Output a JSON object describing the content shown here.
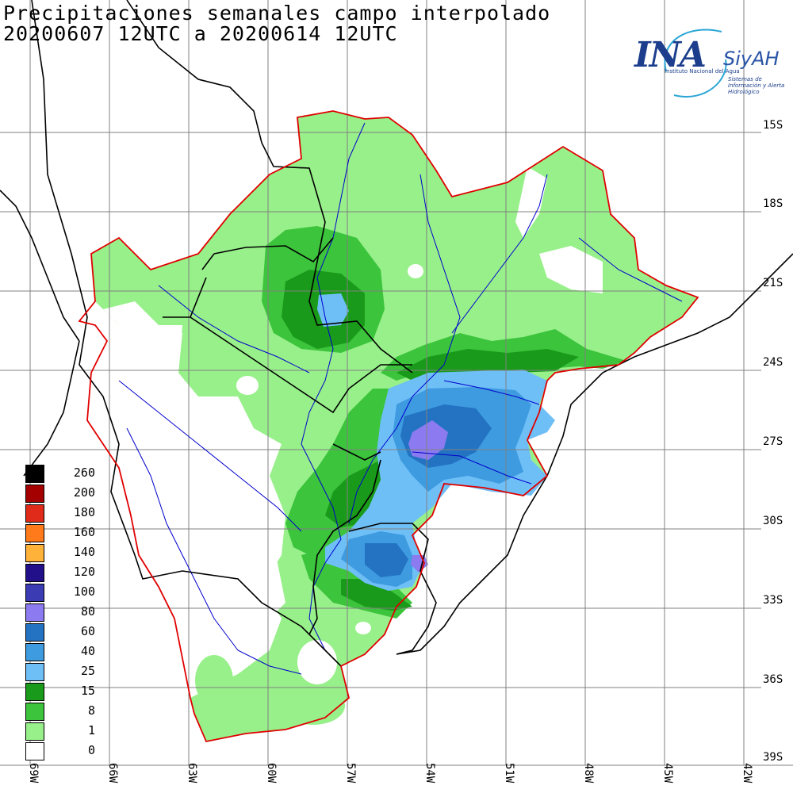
{
  "title": {
    "line1": "Precipitaciones semanales campo interpolado",
    "line2": "20200607 12UTC a 20200614 12UTC"
  },
  "logo": {
    "main": "INA",
    "siyah": "SiyAH",
    "sub1": "Instituto Nacional del Agua",
    "sub2": "Sistemas de Información y Alerta Hidrológico"
  },
  "lat_labels": [
    "15S",
    "18S",
    "21S",
    "24S",
    "27S",
    "30S",
    "33S",
    "36S",
    "39S"
  ],
  "lon_labels": [
    "69W",
    "66W",
    "63W",
    "60W",
    "57W",
    "54W",
    "51W",
    "48W",
    "45W",
    "42W"
  ],
  "legend": {
    "items": [
      {
        "label": "260",
        "color": "#000000"
      },
      {
        "label": "200",
        "color": "#a50000"
      },
      {
        "label": "180",
        "color": "#e02a1a"
      },
      {
        "label": "160",
        "color": "#ff7a1a"
      },
      {
        "label": "140",
        "color": "#ffb23a"
      },
      {
        "label": "120",
        "color": "#22108a"
      },
      {
        "label": "100",
        "color": "#3b3bb4"
      },
      {
        "label": "80",
        "color": "#8c7bf0"
      },
      {
        "label": "60",
        "color": "#2473c2"
      },
      {
        "label": "40",
        "color": "#3e9be0"
      },
      {
        "label": "25",
        "color": "#6fbff7"
      },
      {
        "label": "15",
        "color": "#1a9a1a"
      },
      {
        "label": "8",
        "color": "#3cc43c"
      },
      {
        "label": "1",
        "color": "#98f08a"
      },
      {
        "label": "0",
        "color": "#ffffff"
      }
    ]
  },
  "colors": {
    "basin_border": "#e00000",
    "rivers": "#0000cc",
    "grid": "#808080",
    "borders": "#000000"
  }
}
